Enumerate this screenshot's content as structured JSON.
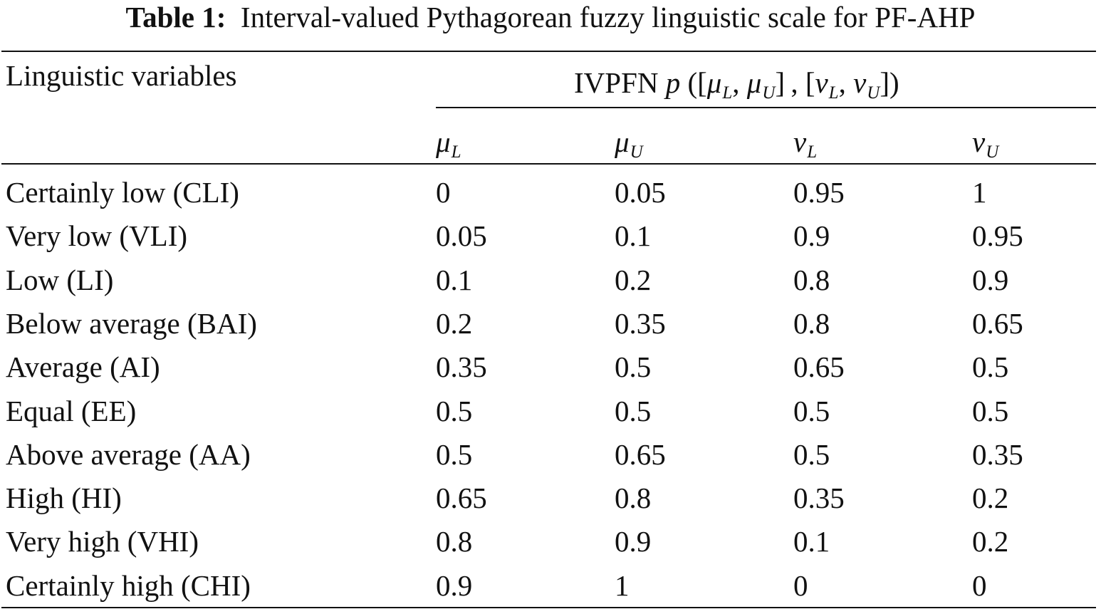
{
  "caption": {
    "label": "Table 1:",
    "text": "Interval-valued Pythagorean fuzzy linguistic scale for PF-AHP"
  },
  "header": {
    "first_col": "Linguistic variables",
    "group_prefix": "IVPFN",
    "group_var": "p",
    "group_formula": "([μ_L, μ_U] , [ν_L, ν_U])",
    "sub_columns": [
      {
        "sym": "μ",
        "sub": "L"
      },
      {
        "sym": "μ",
        "sub": "U"
      },
      {
        "sym": "ν",
        "sub": "L"
      },
      {
        "sym": "ν",
        "sub": "U"
      }
    ]
  },
  "rows": [
    {
      "label": "Certainly low (CLI)",
      "values": [
        "0",
        "0.05",
        "0.95",
        "1"
      ]
    },
    {
      "label": "Very low (VLI)",
      "values": [
        "0.05",
        "0.1",
        "0.9",
        "0.95"
      ]
    },
    {
      "label": "Low (LI)",
      "values": [
        "0.1",
        "0.2",
        "0.8",
        "0.9"
      ]
    },
    {
      "label": "Below average (BAI)",
      "values": [
        "0.2",
        "0.35",
        "0.8",
        "0.65"
      ]
    },
    {
      "label": "Average (AI)",
      "values": [
        "0.35",
        "0.5",
        "0.65",
        "0.5"
      ]
    },
    {
      "label": "Equal (EE)",
      "values": [
        "0.5",
        "0.5",
        "0.5",
        "0.5"
      ]
    },
    {
      "label": "Above average (AA)",
      "values": [
        "0.5",
        "0.65",
        "0.5",
        "0.35"
      ]
    },
    {
      "label": "High (HI)",
      "values": [
        "0.65",
        "0.8",
        "0.35",
        "0.2"
      ]
    },
    {
      "label": "Very high (VHI)",
      "values": [
        "0.8",
        "0.9",
        "0.1",
        "0.2"
      ]
    },
    {
      "label": "Certainly high (CHI)",
      "values": [
        "0.9",
        "1",
        "0",
        "0"
      ]
    }
  ]
}
